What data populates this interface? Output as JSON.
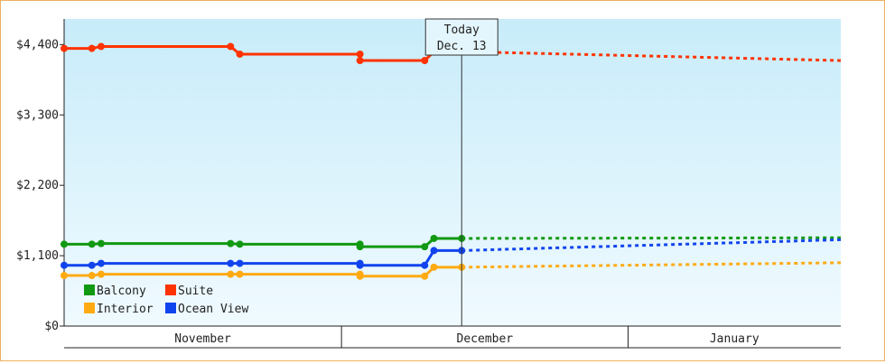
{
  "chart_data": {
    "type": "line",
    "title": "",
    "xlabel": "",
    "ylabel": "",
    "ylim": [
      0,
      4800
    ],
    "yticks": [
      {
        "value": 0,
        "label": "$0"
      },
      {
        "value": 1100,
        "label": "$1,100"
      },
      {
        "value": 2200,
        "label": "$2,200"
      },
      {
        "value": 3300,
        "label": "$3,300"
      },
      {
        "value": 4400,
        "label": "$4,400"
      }
    ],
    "x_domain": [
      "2023-10-31",
      "2024-01-23"
    ],
    "months": [
      {
        "label": "November",
        "start": "2023-10-31",
        "end": "2023-11-30"
      },
      {
        "label": "December",
        "start": "2023-11-30",
        "end": "2023-12-31"
      },
      {
        "label": "January",
        "start": "2023-12-31",
        "end": "2024-01-23"
      }
    ],
    "today": {
      "date": "2023-12-13",
      "label_line1": "Today",
      "label_line2": "Dec. 13"
    },
    "grid": false,
    "legend_position": "bottom-left",
    "series": [
      {
        "name": "Suite",
        "color": "#ff3300",
        "historical": [
          {
            "x": "2023-10-31",
            "y": 4340
          },
          {
            "x": "2023-11-03",
            "y": 4340
          },
          {
            "x": "2023-11-04",
            "y": 4370
          },
          {
            "x": "2023-11-18",
            "y": 4370
          },
          {
            "x": "2023-11-19",
            "y": 4250
          },
          {
            "x": "2023-11-32",
            "y": 4250
          },
          {
            "x": "2023-12-02",
            "y": 4150
          },
          {
            "x": "2023-12-09",
            "y": 4150
          },
          {
            "x": "2023-12-10",
            "y": 4290
          },
          {
            "x": "2023-12-13",
            "y": 4290
          }
        ],
        "forecast": [
          {
            "x": "2023-12-13",
            "y": 4290
          },
          {
            "x": "2024-01-23",
            "y": 4150
          }
        ]
      },
      {
        "name": "Balcony",
        "color": "#119911",
        "historical": [
          {
            "x": "2023-10-31",
            "y": 1280
          },
          {
            "x": "2023-11-03",
            "y": 1280
          },
          {
            "x": "2023-11-04",
            "y": 1290
          },
          {
            "x": "2023-11-18",
            "y": 1290
          },
          {
            "x": "2023-11-19",
            "y": 1280
          },
          {
            "x": "2023-11-32",
            "y": 1280
          },
          {
            "x": "2023-12-02",
            "y": 1240
          },
          {
            "x": "2023-12-09",
            "y": 1240
          },
          {
            "x": "2023-12-10",
            "y": 1370
          },
          {
            "x": "2023-12-13",
            "y": 1370
          }
        ],
        "forecast": [
          {
            "x": "2023-12-13",
            "y": 1370
          },
          {
            "x": "2024-01-23",
            "y": 1380
          }
        ]
      },
      {
        "name": "Ocean View",
        "color": "#1144ee",
        "historical": [
          {
            "x": "2023-10-31",
            "y": 950
          },
          {
            "x": "2023-11-03",
            "y": 950
          },
          {
            "x": "2023-11-04",
            "y": 980
          },
          {
            "x": "2023-11-18",
            "y": 980
          },
          {
            "x": "2023-11-19",
            "y": 980
          },
          {
            "x": "2023-11-32",
            "y": 980
          },
          {
            "x": "2023-12-02",
            "y": 950
          },
          {
            "x": "2023-12-09",
            "y": 950
          },
          {
            "x": "2023-12-10",
            "y": 1180
          },
          {
            "x": "2023-12-13",
            "y": 1180
          }
        ],
        "forecast": [
          {
            "x": "2023-12-13",
            "y": 1180
          },
          {
            "x": "2024-01-23",
            "y": 1350
          }
        ]
      },
      {
        "name": "Interior",
        "color": "#ffaa11",
        "historical": [
          {
            "x": "2023-10-31",
            "y": 790
          },
          {
            "x": "2023-11-03",
            "y": 790
          },
          {
            "x": "2023-11-04",
            "y": 810
          },
          {
            "x": "2023-11-18",
            "y": 810
          },
          {
            "x": "2023-11-19",
            "y": 810
          },
          {
            "x": "2023-11-32",
            "y": 810
          },
          {
            "x": "2023-12-02",
            "y": 780
          },
          {
            "x": "2023-12-09",
            "y": 780
          },
          {
            "x": "2023-12-10",
            "y": 920
          },
          {
            "x": "2023-12-13",
            "y": 920
          }
        ],
        "forecast": [
          {
            "x": "2023-12-13",
            "y": 920
          },
          {
            "x": "2024-01-23",
            "y": 990
          }
        ]
      }
    ],
    "legend": [
      {
        "name": "Balcony",
        "color": "#119911"
      },
      {
        "name": "Suite",
        "color": "#ff3300"
      },
      {
        "name": "Interior",
        "color": "#ffaa11"
      },
      {
        "name": "Ocean View",
        "color": "#1144ee"
      }
    ]
  }
}
